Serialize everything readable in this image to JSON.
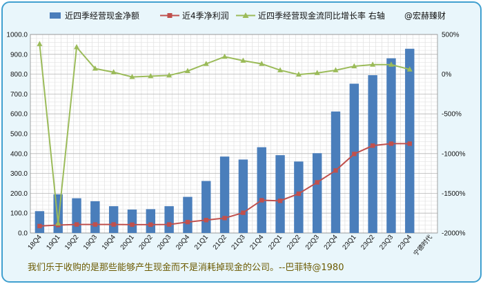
{
  "chart_data": {
    "type": "bar",
    "categories": [
      "18Q4",
      "19Q1",
      "19Q2",
      "19Q3",
      "19Q4",
      "20Q1",
      "20Q2",
      "20Q3",
      "20Q4",
      "21Q1",
      "21Q2",
      "21Q3",
      "21Q4",
      "22Q1",
      "22Q2",
      "22Q3",
      "22Q4",
      "23Q1",
      "23Q2",
      "23Q3",
      "23Q4"
    ],
    "series": [
      {
        "name": "近四季经营现金净额",
        "type": "bar",
        "axis": "left",
        "color": "#4a7ebb",
        "values": [
          110,
          195,
          175,
          160,
          135,
          118,
          120,
          135,
          182,
          262,
          385,
          370,
          432,
          392,
          360,
          402,
          612,
          752,
          795,
          880,
          928
        ]
      },
      {
        "name": "近4季净利润",
        "type": "line",
        "axis": "left",
        "color": "#c0504d",
        "values": [
          35,
          40,
          43,
          43,
          43,
          42,
          42,
          43,
          55,
          65,
          75,
          102,
          165,
          162,
          198,
          255,
          315,
          398,
          440,
          450,
          450
        ]
      },
      {
        "name": "近四季经营现金流同比增长率 右轴",
        "type": "line",
        "axis": "right",
        "color": "#9bbb59",
        "values": [
          380,
          -1880,
          340,
          70,
          25,
          -35,
          -25,
          -15,
          40,
          130,
          220,
          170,
          130,
          50,
          -5,
          15,
          50,
          100,
          120,
          120,
          60
        ]
      }
    ],
    "left_axis": {
      "min": 0,
      "max": 1000,
      "ticks": [
        "0.0",
        "100.0",
        "200.0",
        "300.0",
        "400.0",
        "500.0",
        "600.0",
        "700.0",
        "800.0",
        "900.0",
        "1000.0"
      ]
    },
    "right_axis": {
      "min": -2000,
      "max": 500,
      "ticks": [
        "-2000%",
        "-1500%",
        "-1000%",
        "-500%",
        "0%",
        "500%"
      ]
    },
    "legend": [
      "近四季经营现金净额",
      "近4季净利润",
      "近四季经营现金流同比增长率 右轴"
    ],
    "legend_position": "top",
    "grid": true
  },
  "watermark": "@宏赫臻财",
  "company_label": "宁德时代",
  "quote": "我们乐于收购的是那些能够产生现金而不是消耗掉现金的公司。--巴菲特@1980",
  "colors": {
    "frame": "#3f9fcf",
    "background": "#e9f6fb",
    "quote": "#6b5a00"
  }
}
